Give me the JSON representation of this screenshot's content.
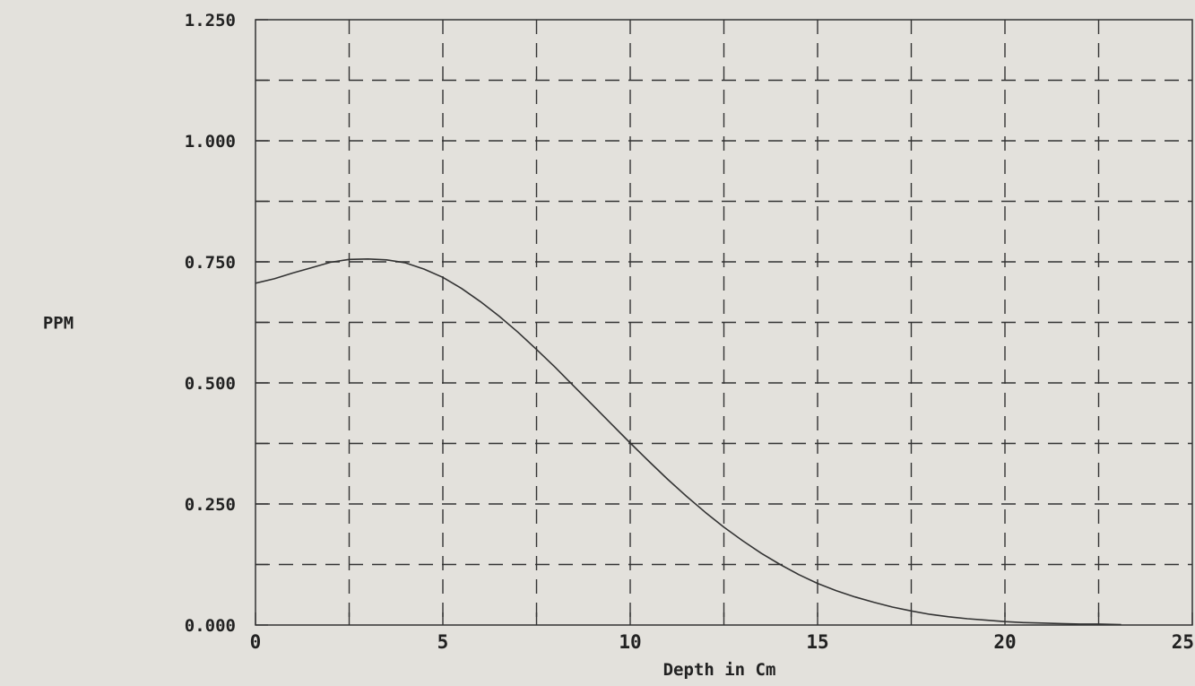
{
  "chart_data": {
    "type": "line",
    "title": "",
    "xlabel": "Depth in Cm",
    "ylabel": "PPM",
    "xlim": [
      0,
      25
    ],
    "ylim": [
      0,
      1.25
    ],
    "grid": true,
    "grid_style": "dashed",
    "x_tick_values": [
      0,
      5,
      10,
      15,
      20,
      25
    ],
    "x_tick_labels": [
      "0",
      "5",
      "10",
      "15",
      "20",
      "25"
    ],
    "x_minor_ticks": [
      2.5,
      7.5,
      12.5,
      17.5,
      22.5
    ],
    "y_tick_values": [
      0,
      0.25,
      0.5,
      0.75,
      1.0,
      1.25
    ],
    "y_tick_labels": [
      "0.000",
      "0.250",
      "0.500",
      "0.750",
      "1.000",
      "1.250"
    ],
    "y_minor_ticks": [
      0.125,
      0.375,
      0.625,
      0.875,
      1.125
    ],
    "series": [
      {
        "x": [
          0,
          0.5,
          1,
          1.5,
          2,
          2.5,
          3,
          3.5,
          4,
          4.5,
          5,
          5.5,
          6,
          6.5,
          7,
          7.5,
          8,
          8.5,
          9,
          9.5,
          10,
          10.5,
          11,
          11.5,
          12,
          12.5,
          13,
          13.5,
          14,
          14.5,
          15,
          15.5,
          16,
          16.5,
          17,
          17.5,
          18,
          18.5,
          19,
          19.5,
          20,
          20.5,
          21,
          21.5,
          22,
          22.5,
          23.1
        ],
        "y": [
          0.706,
          0.715,
          0.727,
          0.738,
          0.749,
          0.755,
          0.756,
          0.754,
          0.748,
          0.735,
          0.718,
          0.695,
          0.668,
          0.638,
          0.605,
          0.569,
          0.532,
          0.493,
          0.454,
          0.415,
          0.376,
          0.338,
          0.301,
          0.266,
          0.233,
          0.202,
          0.174,
          0.148,
          0.125,
          0.104,
          0.086,
          0.071,
          0.058,
          0.047,
          0.037,
          0.029,
          0.022,
          0.017,
          0.013,
          0.01,
          0.007,
          0.005,
          0.004,
          0.003,
          0.002,
          0.002,
          0.001
        ],
        "color": "#333333"
      }
    ]
  }
}
